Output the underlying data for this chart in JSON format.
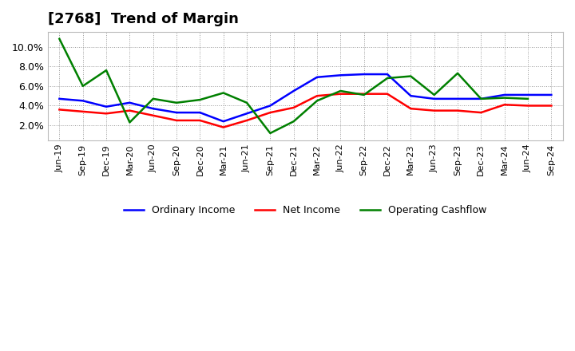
{
  "title": "[2768]  Trend of Margin",
  "x_labels": [
    "Jun-19",
    "Sep-19",
    "Dec-19",
    "Mar-20",
    "Jun-20",
    "Sep-20",
    "Dec-20",
    "Mar-21",
    "Jun-21",
    "Sep-21",
    "Dec-21",
    "Mar-22",
    "Jun-22",
    "Sep-22",
    "Dec-22",
    "Mar-23",
    "Jun-23",
    "Sep-23",
    "Dec-23",
    "Mar-24",
    "Jun-24",
    "Sep-24"
  ],
  "ordinary_income": [
    4.7,
    4.5,
    3.9,
    4.3,
    3.7,
    3.3,
    3.3,
    2.4,
    3.2,
    4.0,
    5.5,
    6.9,
    7.1,
    7.2,
    7.2,
    5.0,
    4.7,
    4.7,
    4.7,
    5.1,
    5.1,
    5.1
  ],
  "net_income": [
    3.6,
    3.4,
    3.2,
    3.5,
    3.0,
    2.5,
    2.5,
    1.8,
    2.5,
    3.3,
    3.8,
    5.0,
    5.2,
    5.2,
    5.2,
    3.7,
    3.5,
    3.5,
    3.3,
    4.1,
    4.0,
    4.0
  ],
  "operating_cf": [
    10.8,
    6.0,
    7.6,
    2.3,
    4.7,
    4.3,
    4.6,
    5.3,
    4.3,
    1.2,
    2.4,
    4.5,
    5.5,
    5.1,
    6.8,
    7.0,
    5.1,
    7.3,
    4.7,
    4.8,
    4.7,
    null
  ],
  "ylim_min": 0.5,
  "ylim_max": 11.5,
  "yticks": [
    2.0,
    4.0,
    6.0,
    8.0,
    10.0
  ],
  "ordinary_color": "#0000ff",
  "net_income_color": "#ff0000",
  "operating_cf_color": "#008000",
  "bg_color": "#ffffff",
  "plot_bg_color": "#ffffff",
  "grid_color": "#999999",
  "title_fontsize": 13,
  "tick_fontsize": 8,
  "legend_labels": [
    "Ordinary Income",
    "Net Income",
    "Operating Cashflow"
  ],
  "linewidth": 1.8
}
